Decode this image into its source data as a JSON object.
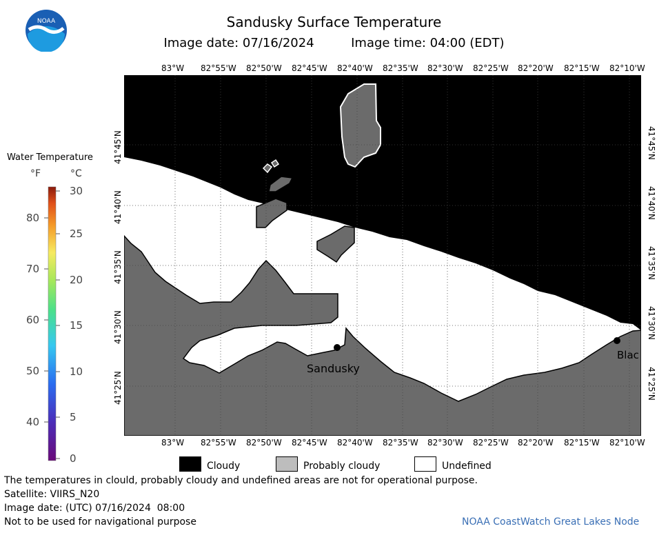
{
  "header": {
    "title": "Sandusky Surface Temperature",
    "image_date_label": "Image date: 07/16/2024",
    "image_time_label": "Image time: 04:00 (EDT)"
  },
  "logo": {
    "text": "NOAA",
    "icon": "noaa-logo-icon"
  },
  "map": {
    "longitude_labels": [
      "83°W",
      "82°55'W",
      "82°50'W",
      "82°45'W",
      "82°40'W",
      "82°35'W",
      "82°30'W",
      "82°25'W",
      "82°20'W",
      "82°15'W",
      "82°10'W"
    ],
    "latitude_labels": [
      "41°45'N",
      "41°40'N",
      "41°35'N",
      "41°30'N",
      "41°25'N"
    ],
    "places": [
      {
        "name": "Sandusky"
      },
      {
        "name": "Blac"
      }
    ],
    "colors": {
      "cloudy": "#000000",
      "land": "#6b6b6b",
      "undefined": "#ffffff"
    }
  },
  "colorbar": {
    "title": "Water Temperature",
    "unit_f": "°F",
    "unit_c": "°C",
    "f_ticks": [
      "80",
      "70",
      "60",
      "50",
      "40"
    ],
    "c_ticks": [
      "30",
      "25",
      "20",
      "15",
      "10",
      "5",
      "0"
    ]
  },
  "legend": {
    "items": [
      {
        "label": "Cloudy",
        "color": "#000000"
      },
      {
        "label": "Probably cloudy",
        "color": "#bdbdbd"
      },
      {
        "label": "Undefined",
        "color": "#ffffff"
      }
    ]
  },
  "footer": {
    "disclaimer": "The temperatures in clould, probably cloudy and undefined areas are not for operational purpose.",
    "satellite": "Satellite: VIIRS_N20",
    "utc_date": "Image date: (UTC) 07/16/2024  08:00",
    "nav_warning": "Not to be used for navigational purpose",
    "credit": "NOAA CoastWatch Great Lakes Node"
  }
}
